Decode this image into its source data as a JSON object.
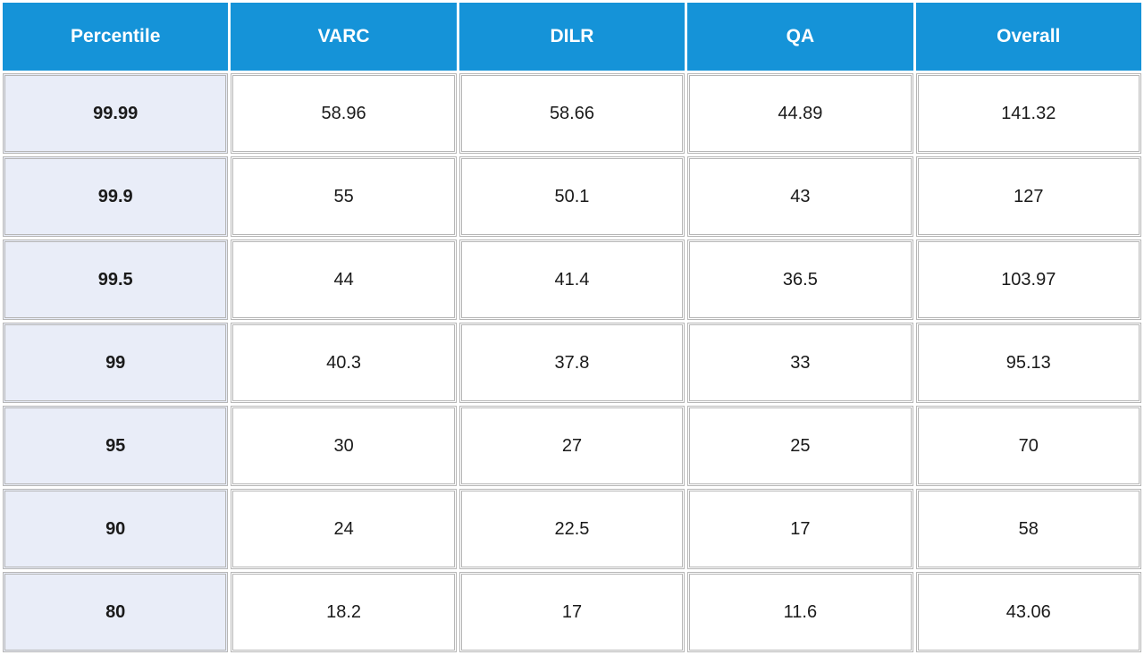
{
  "table": {
    "header_bg": "#1593d8",
    "header_text_color": "#ffffff",
    "first_col_bg": "#e9edf8",
    "cell_bg": "#ffffff",
    "border_color": "#b6b6b6",
    "columns": [
      "Percentile",
      "VARC",
      "DILR",
      "QA",
      "Overall"
    ],
    "rows": [
      [
        "99.99",
        "58.96",
        "58.66",
        "44.89",
        "141.32"
      ],
      [
        "99.9",
        "55",
        "50.1",
        "43",
        "127"
      ],
      [
        "99.5",
        "44",
        "41.4",
        "36.5",
        "103.97"
      ],
      [
        "99",
        "40.3",
        "37.8",
        "33",
        "95.13"
      ],
      [
        "95",
        "30",
        "27",
        "25",
        "70"
      ],
      [
        "90",
        "24",
        "22.5",
        "17",
        "58"
      ],
      [
        "80",
        "18.2",
        "17",
        "11.6",
        "43.06"
      ]
    ],
    "header_fontsize": 21,
    "cell_fontsize": 20,
    "first_col_fontweight": 700
  }
}
